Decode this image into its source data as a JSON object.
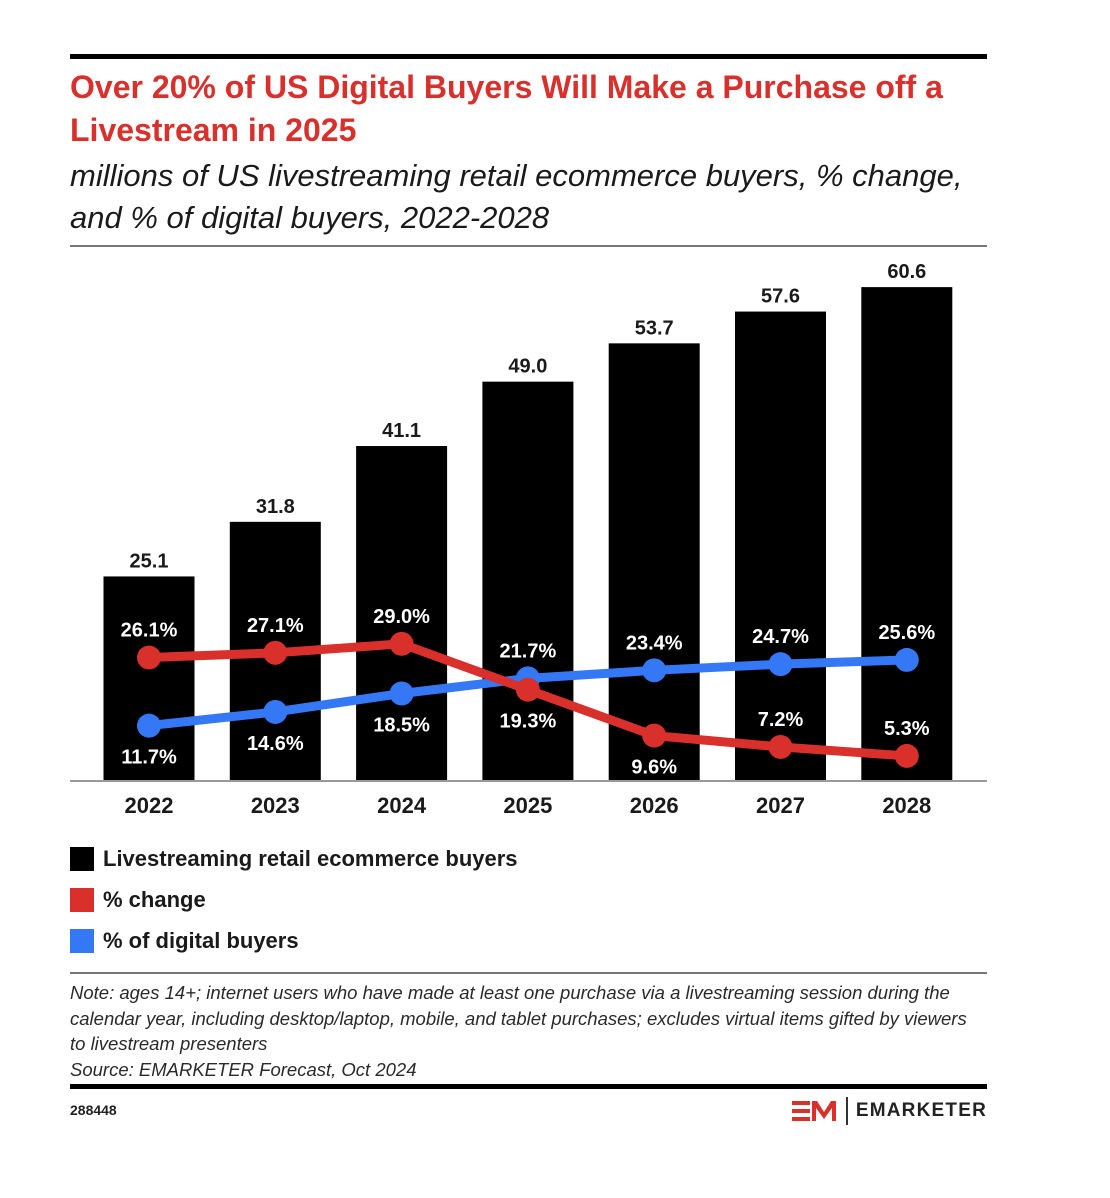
{
  "header": {
    "title": "Over 20% of US Digital Buyers Will Make a Purchase off a Livestream in 2025",
    "subtitle": "millions of US livestreaming retail ecommerce buyers, % change, and % of digital buyers, 2022-2028"
  },
  "colors": {
    "bars": "#000000",
    "pct_change": "#d9302c",
    "pct_digital": "#3478f6",
    "title": "#d9302c"
  },
  "chart_data": {
    "type": "bar",
    "title": "Over 20% of US Digital Buyers Will Make a Purchase off a Livestream in 2025",
    "subtitle": "millions of US livestreaming retail ecommerce buyers, % change, and % of digital buyers, 2022-2028",
    "xlabel": "",
    "ylabel": "",
    "categories": [
      "2022",
      "2023",
      "2024",
      "2025",
      "2026",
      "2027",
      "2028"
    ],
    "grid": false,
    "legend_position": "bottom-left",
    "series": [
      {
        "name": "Livestreaming retail ecommerce buyers",
        "type": "bar",
        "unit": "millions",
        "values": [
          25.1,
          31.8,
          41.1,
          49.0,
          53.7,
          57.6,
          60.6
        ],
        "labels": [
          "25.1",
          "31.8",
          "41.1",
          "49.0",
          "53.7",
          "57.6",
          "60.6"
        ],
        "ylim": [
          0,
          62
        ]
      },
      {
        "name": "% change",
        "type": "line",
        "unit": "%",
        "values": [
          26.1,
          27.1,
          29.0,
          19.3,
          9.6,
          7.2,
          5.3
        ],
        "labels": [
          "26.1%",
          "27.1%",
          "29.0%",
          "19.3%",
          "9.6%",
          "7.2%",
          "5.3%"
        ],
        "label_side": [
          "above",
          "above",
          "above",
          "below",
          "below",
          "above",
          "above"
        ]
      },
      {
        "name": "% of digital buyers",
        "type": "line",
        "unit": "%",
        "values": [
          11.7,
          14.6,
          18.5,
          21.7,
          23.4,
          24.7,
          25.6
        ],
        "labels": [
          "11.7%",
          "14.6%",
          "18.5%",
          "21.7%",
          "23.4%",
          "24.7%",
          "25.6%"
        ],
        "label_side": [
          "below",
          "below",
          "below",
          "above",
          "above",
          "above",
          "above"
        ]
      }
    ]
  },
  "legend": {
    "items": [
      {
        "label": "Livestreaming retail ecommerce buyers"
      },
      {
        "label": "% change"
      },
      {
        "label": "% of digital buyers"
      }
    ]
  },
  "footer": {
    "note": "Note: ages 14+; internet users who have made at least one purchase via a livestreaming session during the calendar year, including desktop/laptop, mobile, and tablet purchases; excludes virtual items gifted by viewers to livestream presenters",
    "source": "Source: EMARKETER Forecast, Oct 2024",
    "chart_id": "288448",
    "brand_mark": "EM",
    "brand_name": "EMARKETER"
  }
}
